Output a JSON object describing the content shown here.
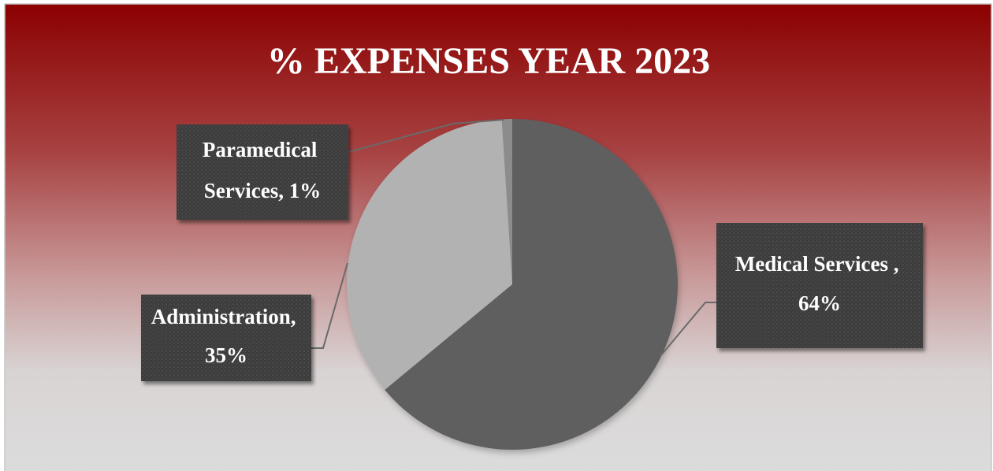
{
  "chart_data": {
    "type": "pie",
    "title": "% EXPENSES YEAR 2023",
    "slices": [
      {
        "label": "Medical Services ,",
        "value": 64,
        "value_label": "64%",
        "color": "#5f5f5f"
      },
      {
        "label": "Administration,",
        "value": 35,
        "value_label": "35%",
        "color": "#b2b2b2"
      },
      {
        "label": "Paramedical Services,",
        "value": 1,
        "value_label": "1%",
        "color": "#8c8c8c"
      }
    ],
    "data_label_style": "callout boxes with leader lines",
    "legend": "none",
    "colors": {
      "background_top": "#8b0000",
      "background_bottom": "#dcdcdc",
      "label_box": "#3c3c3c",
      "title_text": "#ffffff"
    }
  }
}
